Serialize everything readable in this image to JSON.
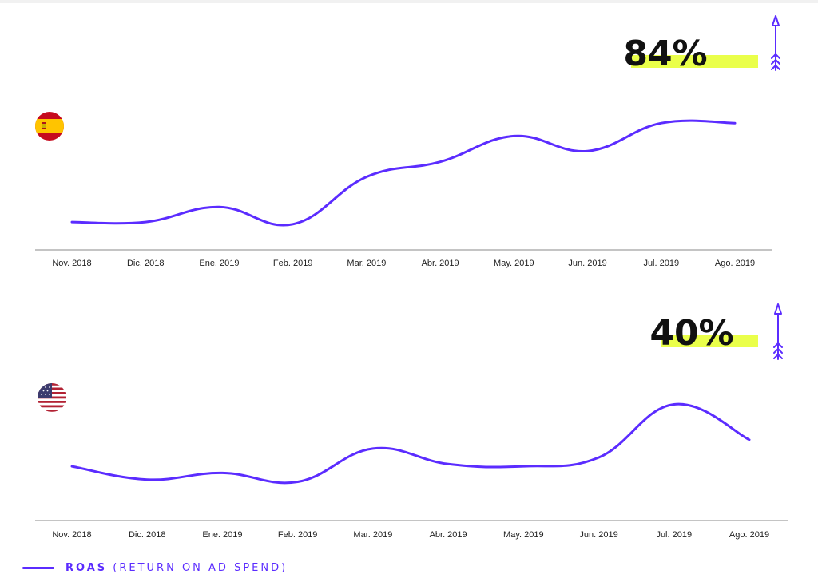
{
  "colors": {
    "line": "#5b2cff",
    "highlight": "#eaff4a",
    "axis": "#8a8a8a",
    "text": "#111111"
  },
  "legend": {
    "series_name": "ROAS",
    "series_description": "(RETURN ON AD SPEND)"
  },
  "chart_data": [
    {
      "type": "line",
      "flag": "spain-flag",
      "headline": "84%",
      "trend": "up",
      "categories": [
        "Nov. 2018",
        "Dic. 2018",
        "Ene. 2019",
        "Feb. 2019",
        "Mar. 2019",
        "Abr. 2019",
        "May. 2019",
        "Jun. 2019",
        "Jul. 2019",
        "Ago. 2019"
      ],
      "series": [
        {
          "name": "ROAS",
          "values": [
            1.0,
            1.0,
            1.7,
            0.9,
            3.1,
            3.8,
            5.0,
            4.3,
            5.6,
            5.6
          ]
        }
      ],
      "ylim": [
        0,
        6.5
      ],
      "grid": false,
      "legend_position": "bottom-left"
    },
    {
      "type": "line",
      "flag": "usa-flag",
      "headline": "40%",
      "trend": "up",
      "categories": [
        "Nov. 2018",
        "Dic. 2018",
        "Ene. 2019",
        "Feb. 2019",
        "Mar. 2019",
        "Abr. 2019",
        "May. 2019",
        "Jun. 2019",
        "Jul. 2019",
        "Ago. 2019"
      ],
      "series": [
        {
          "name": "ROAS",
          "values": [
            2.2,
            1.6,
            1.9,
            1.5,
            3.0,
            2.3,
            2.2,
            2.6,
            5.0,
            3.4
          ]
        }
      ],
      "ylim": [
        0,
        6.5
      ],
      "grid": false,
      "legend_position": "bottom-left"
    }
  ]
}
